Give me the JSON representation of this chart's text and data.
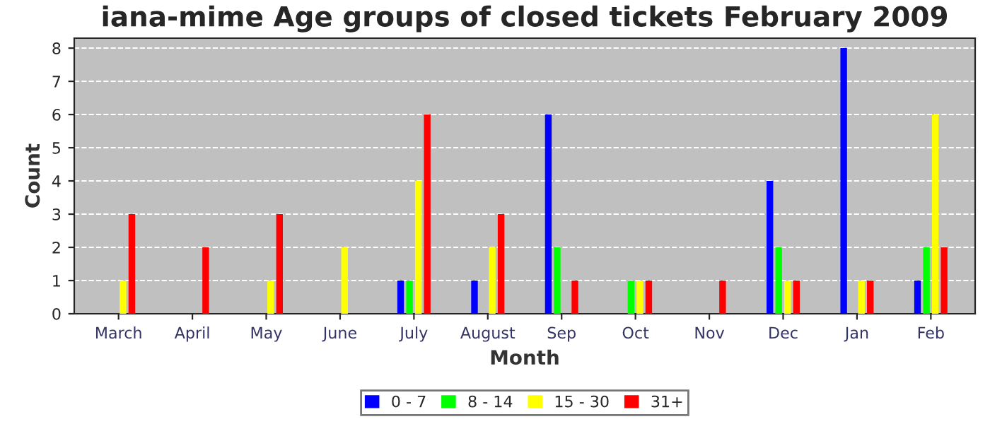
{
  "chart_data": {
    "type": "bar",
    "title": "iana-mime Age groups of closed tickets February 2009",
    "xlabel": "Month",
    "ylabel": "Count",
    "categories": [
      "March",
      "April",
      "May",
      "June",
      "July",
      "August",
      "Sep",
      "Oct",
      "Nov",
      "Dec",
      "Jan",
      "Feb"
    ],
    "series": [
      {
        "name": "0 - 7",
        "color": "#0000ff",
        "values": [
          0,
          0,
          0,
          0,
          1,
          1,
          6,
          0,
          0,
          4,
          8,
          1
        ]
      },
      {
        "name": "8 - 14",
        "color": "#00ff00",
        "values": [
          0,
          0,
          0,
          0,
          1,
          0,
          2,
          1,
          0,
          2,
          0,
          2
        ]
      },
      {
        "name": "15 - 30",
        "color": "#ffff00",
        "values": [
          1,
          0,
          1,
          2,
          4,
          2,
          0,
          1,
          0,
          1,
          1,
          6
        ]
      },
      {
        "name": "31+",
        "color": "#ff0000",
        "values": [
          3,
          2,
          3,
          0,
          6,
          3,
          1,
          1,
          1,
          1,
          1,
          2
        ]
      }
    ],
    "ylim": [
      0,
      8.3
    ],
    "yticks": [
      0,
      1,
      2,
      3,
      4,
      5,
      6,
      7,
      8
    ],
    "grid": "y",
    "legend": "bottom"
  }
}
